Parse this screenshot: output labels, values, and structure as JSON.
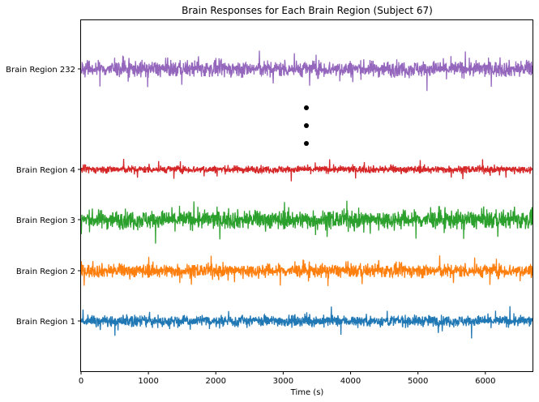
{
  "chart_data": {
    "type": "line",
    "title": "Brain Responses for Each Brain Region (Subject 67)",
    "xlabel": "Time (s)",
    "ylabel": "",
    "xlim": [
      0,
      6700
    ],
    "x_ticks": [
      "0",
      "1000",
      "2000",
      "3000",
      "4000",
      "5000",
      "6000"
    ],
    "grid": false,
    "legend": "none",
    "ellipsis": "vertical dots between Brain Region 4 and Brain Region 232",
    "series": [
      {
        "name": "Brain Region 1",
        "color": "#1f77b4",
        "amplitude": 0.9,
        "spike_amplitude": 1.6
      },
      {
        "name": "Brain Region 2",
        "color": "#ff7f0e",
        "amplitude": 1.1,
        "spike_amplitude": 1.6
      },
      {
        "name": "Brain Region 3",
        "color": "#2ca02c",
        "amplitude": 1.5,
        "spike_amplitude": 2.0
      },
      {
        "name": "Brain Region 4",
        "color": "#d62728",
        "amplitude": 0.6,
        "spike_amplitude": 1.1
      },
      {
        "name": "Brain Region 232",
        "color": "#9467bd",
        "amplitude": 1.3,
        "spike_amplitude": 1.9
      }
    ]
  }
}
